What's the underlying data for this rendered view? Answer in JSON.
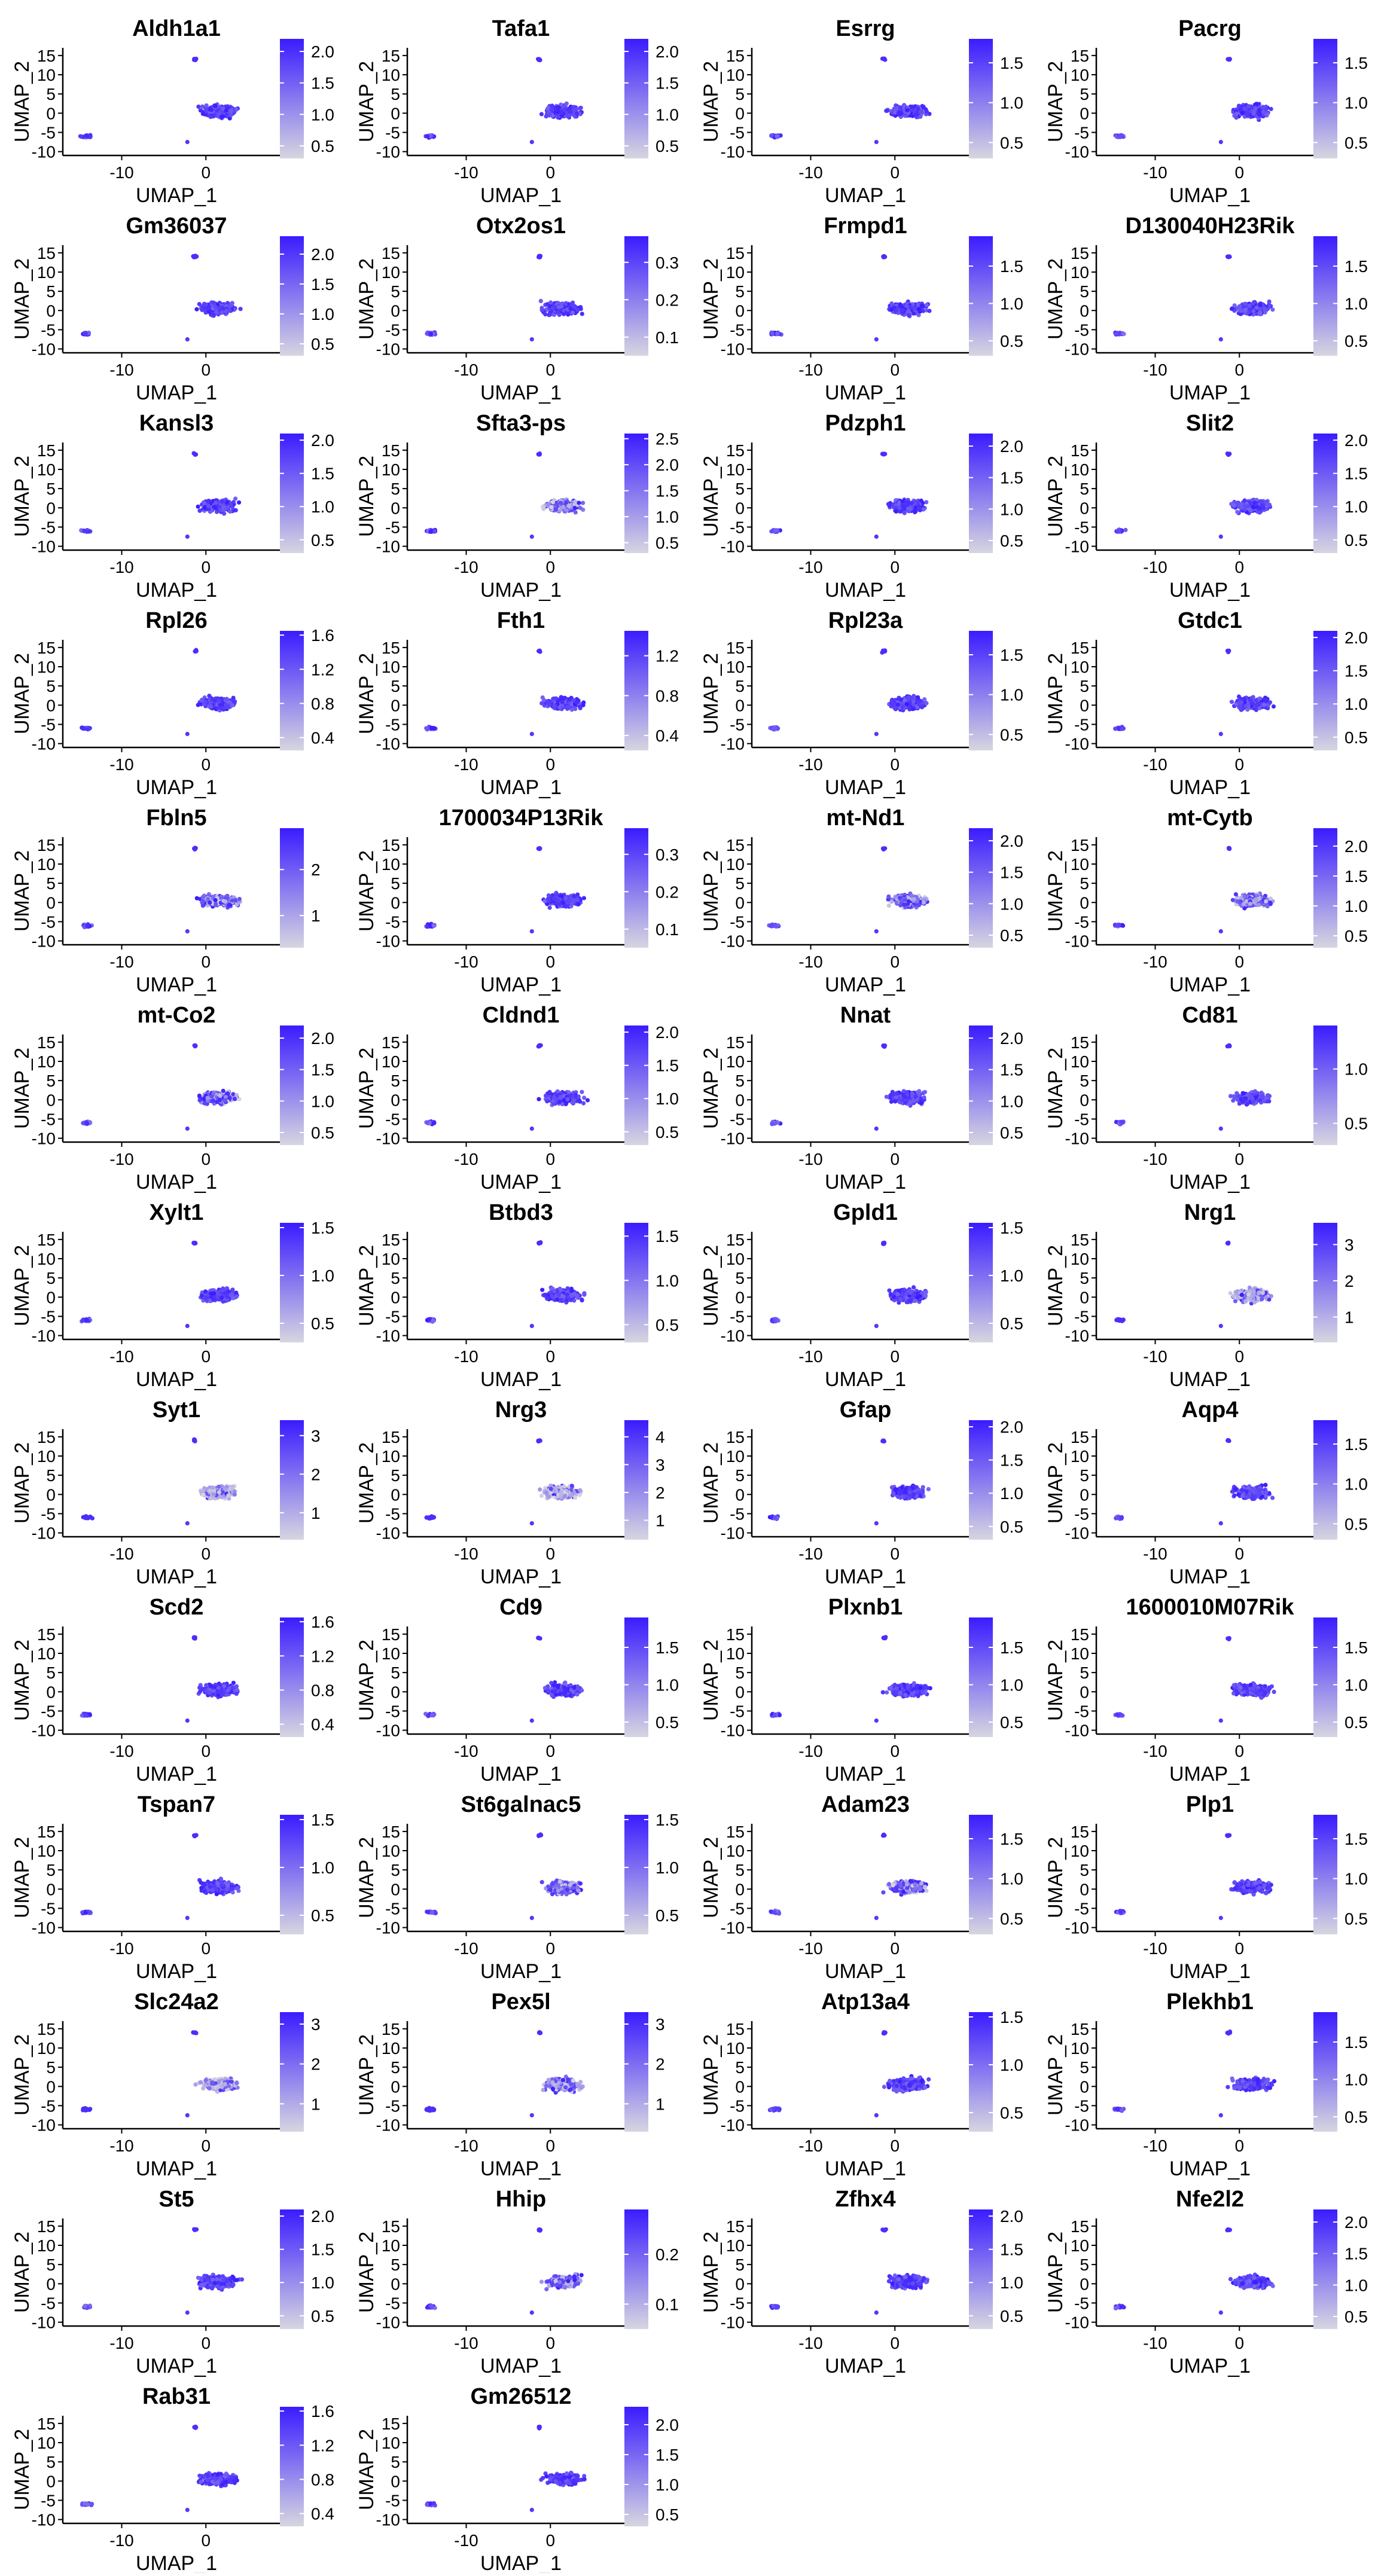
{
  "figure": {
    "x_axis_label": "UMAP_1",
    "y_axis_label": "UMAP_2",
    "low_color": "#d6d6e0",
    "high_color": "#3a1cff"
  },
  "chart_data": {
    "type": "scatter",
    "shared_axes": {
      "xlabel": "UMAP_1",
      "ylabel": "UMAP_2",
      "x_ticks": [
        -10,
        0
      ],
      "y_ticks": [
        -10,
        -5,
        0,
        5,
        10,
        15
      ]
    },
    "panels": [
      {
        "gene": "Aldh1a1",
        "legend_ticks": [
          "0.5",
          "1.0",
          "1.5",
          "2.0"
        ],
        "legend_range": [
          0.3,
          2.2
        ]
      },
      {
        "gene": "Tafa1",
        "legend_ticks": [
          "0.5",
          "1.0",
          "1.5",
          "2.0"
        ],
        "legend_range": [
          0.3,
          2.2
        ]
      },
      {
        "gene": "Esrrg",
        "legend_ticks": [
          "0.5",
          "1.0",
          "1.5"
        ],
        "legend_range": [
          0.3,
          1.8
        ]
      },
      {
        "gene": "Pacrg",
        "legend_ticks": [
          "0.5",
          "1.0",
          "1.5"
        ],
        "legend_range": [
          0.3,
          1.8
        ]
      },
      {
        "gene": "Gm36037",
        "legend_ticks": [
          "0.5",
          "1.0",
          "1.5",
          "2.0"
        ],
        "legend_range": [
          0.3,
          2.3
        ]
      },
      {
        "gene": "Otx2os1",
        "legend_ticks": [
          "0.1",
          "0.2",
          "0.3"
        ],
        "legend_range": [
          0.05,
          0.37
        ]
      },
      {
        "gene": "Frmpd1",
        "legend_ticks": [
          "0.5",
          "1.0",
          "1.5"
        ],
        "legend_range": [
          0.3,
          1.9
        ]
      },
      {
        "gene": "D130040H23Rik",
        "legend_ticks": [
          "0.5",
          "1.0",
          "1.5"
        ],
        "legend_range": [
          0.3,
          1.9
        ]
      },
      {
        "gene": "Kansl3",
        "legend_ticks": [
          "0.5",
          "1.0",
          "1.5",
          "2.0"
        ],
        "legend_range": [
          0.3,
          2.1
        ]
      },
      {
        "gene": "Sfta3-ps",
        "legend_ticks": [
          "0.5",
          "1.0",
          "1.5",
          "2.0",
          "2.5"
        ],
        "legend_range": [
          0.3,
          2.6
        ]
      },
      {
        "gene": "Pdzph1",
        "legend_ticks": [
          "0.5",
          "1.0",
          "1.5",
          "2.0"
        ],
        "legend_range": [
          0.3,
          2.2
        ]
      },
      {
        "gene": "Slit2",
        "legend_ticks": [
          "0.5",
          "1.0",
          "1.5",
          "2.0"
        ],
        "legend_range": [
          0.3,
          2.1
        ]
      },
      {
        "gene": "Rpl26",
        "legend_ticks": [
          "0.4",
          "0.8",
          "1.2",
          "1.6"
        ],
        "legend_range": [
          0.25,
          1.65
        ]
      },
      {
        "gene": "Fth1",
        "legend_ticks": [
          "0.4",
          "0.8",
          "1.2"
        ],
        "legend_range": [
          0.25,
          1.45
        ]
      },
      {
        "gene": "Rpl23a",
        "legend_ticks": [
          "0.5",
          "1.0",
          "1.5"
        ],
        "legend_range": [
          0.3,
          1.8
        ]
      },
      {
        "gene": "Gtdc1",
        "legend_ticks": [
          "0.5",
          "1.0",
          "1.5",
          "2.0"
        ],
        "legend_range": [
          0.3,
          2.1
        ]
      },
      {
        "gene": "Fbln5",
        "legend_ticks": [
          "1",
          "2"
        ],
        "legend_range": [
          0.3,
          2.9
        ]
      },
      {
        "gene": "1700034P13Rik",
        "legend_ticks": [
          "0.1",
          "0.2",
          "0.3"
        ],
        "legend_range": [
          0.05,
          0.37
        ]
      },
      {
        "gene": "mt-Nd1",
        "legend_ticks": [
          "0.5",
          "1.0",
          "1.5",
          "2.0"
        ],
        "legend_range": [
          0.3,
          2.2
        ]
      },
      {
        "gene": "mt-Cytb",
        "legend_ticks": [
          "0.5",
          "1.0",
          "1.5",
          "2.0"
        ],
        "legend_range": [
          0.3,
          2.3
        ]
      },
      {
        "gene": "mt-Co2",
        "legend_ticks": [
          "0.5",
          "1.0",
          "1.5",
          "2.0"
        ],
        "legend_range": [
          0.3,
          2.2
        ]
      },
      {
        "gene": "Cldnd1",
        "legend_ticks": [
          "0.5",
          "1.0",
          "1.5",
          "2.0"
        ],
        "legend_range": [
          0.3,
          2.1
        ]
      },
      {
        "gene": "Nnat",
        "legend_ticks": [
          "0.5",
          "1.0",
          "1.5",
          "2.0"
        ],
        "legend_range": [
          0.3,
          2.2
        ]
      },
      {
        "gene": "Cd81",
        "legend_ticks": [
          "0.5",
          "1.0"
        ],
        "legend_range": [
          0.3,
          1.4
        ]
      },
      {
        "gene": "Xylt1",
        "legend_ticks": [
          "0.5",
          "1.0",
          "1.5"
        ],
        "legend_range": [
          0.3,
          1.55
        ]
      },
      {
        "gene": "Btbd3",
        "legend_ticks": [
          "0.5",
          "1.0",
          "1.5"
        ],
        "legend_range": [
          0.3,
          1.65
        ]
      },
      {
        "gene": "Gpld1",
        "legend_ticks": [
          "0.5",
          "1.0",
          "1.5"
        ],
        "legend_range": [
          0.3,
          1.55
        ]
      },
      {
        "gene": "Nrg1",
        "legend_ticks": [
          "1",
          "2",
          "3"
        ],
        "legend_range": [
          0.3,
          3.6
        ]
      },
      {
        "gene": "Syt1",
        "legend_ticks": [
          "1",
          "2",
          "3"
        ],
        "legend_range": [
          0.3,
          3.4
        ]
      },
      {
        "gene": "Nrg3",
        "legend_ticks": [
          "1",
          "2",
          "3",
          "4"
        ],
        "legend_range": [
          0.3,
          4.6
        ]
      },
      {
        "gene": "Gfap",
        "legend_ticks": [
          "0.5",
          "1.0",
          "1.5",
          "2.0"
        ],
        "legend_range": [
          0.3,
          2.1
        ]
      },
      {
        "gene": "Aqp4",
        "legend_ticks": [
          "0.5",
          "1.0",
          "1.5"
        ],
        "legend_range": [
          0.3,
          1.8
        ]
      },
      {
        "gene": "Scd2",
        "legend_ticks": [
          "0.4",
          "0.8",
          "1.2",
          "1.6"
        ],
        "legend_range": [
          0.25,
          1.65
        ]
      },
      {
        "gene": "Cd9",
        "legend_ticks": [
          "0.5",
          "1.0",
          "1.5"
        ],
        "legend_range": [
          0.3,
          1.9
        ]
      },
      {
        "gene": "Plxnb1",
        "legend_ticks": [
          "0.5",
          "1.0",
          "1.5"
        ],
        "legend_range": [
          0.3,
          1.9
        ]
      },
      {
        "gene": "1600010M07Rik",
        "legend_ticks": [
          "0.5",
          "1.0",
          "1.5"
        ],
        "legend_range": [
          0.3,
          1.9
        ]
      },
      {
        "gene": "Tspan7",
        "legend_ticks": [
          "0.5",
          "1.0",
          "1.5"
        ],
        "legend_range": [
          0.3,
          1.55
        ]
      },
      {
        "gene": "St6galnac5",
        "legend_ticks": [
          "0.5",
          "1.0",
          "1.5"
        ],
        "legend_range": [
          0.3,
          1.55
        ]
      },
      {
        "gene": "Adam23",
        "legend_ticks": [
          "0.5",
          "1.0",
          "1.5"
        ],
        "legend_range": [
          0.3,
          1.8
        ]
      },
      {
        "gene": "Plp1",
        "legend_ticks": [
          "0.5",
          "1.0",
          "1.5"
        ],
        "legend_range": [
          0.3,
          1.8
        ]
      },
      {
        "gene": "Slc24a2",
        "legend_ticks": [
          "1",
          "2",
          "3"
        ],
        "legend_range": [
          0.3,
          3.3
        ]
      },
      {
        "gene": "Pex5l",
        "legend_ticks": [
          "1",
          "2",
          "3"
        ],
        "legend_range": [
          0.3,
          3.3
        ]
      },
      {
        "gene": "Atp13a4",
        "legend_ticks": [
          "0.5",
          "1.0",
          "1.5"
        ],
        "legend_range": [
          0.3,
          1.55
        ]
      },
      {
        "gene": "Plekhb1",
        "legend_ticks": [
          "0.5",
          "1.0",
          "1.5"
        ],
        "legend_range": [
          0.3,
          1.9
        ]
      },
      {
        "gene": "St5",
        "legend_ticks": [
          "0.5",
          "1.0",
          "1.5",
          "2.0"
        ],
        "legend_range": [
          0.3,
          2.1
        ]
      },
      {
        "gene": "Hhip",
        "legend_ticks": [
          "0.1",
          "0.2"
        ],
        "legend_range": [
          0.05,
          0.29
        ]
      },
      {
        "gene": "Zfhx4",
        "legend_ticks": [
          "0.5",
          "1.0",
          "1.5",
          "2.0"
        ],
        "legend_range": [
          0.3,
          2.1
        ]
      },
      {
        "gene": "Nfe2l2",
        "legend_ticks": [
          "0.5",
          "1.0",
          "1.5",
          "2.0"
        ],
        "legend_range": [
          0.3,
          2.2
        ]
      },
      {
        "gene": "Rab31",
        "legend_ticks": [
          "0.4",
          "0.8",
          "1.2",
          "1.6"
        ],
        "legend_range": [
          0.25,
          1.65
        ]
      },
      {
        "gene": "Gm26512",
        "legend_ticks": [
          "0.5",
          "1.0",
          "1.5",
          "2.0"
        ],
        "legend_range": [
          0.3,
          2.3
        ]
      }
    ]
  }
}
